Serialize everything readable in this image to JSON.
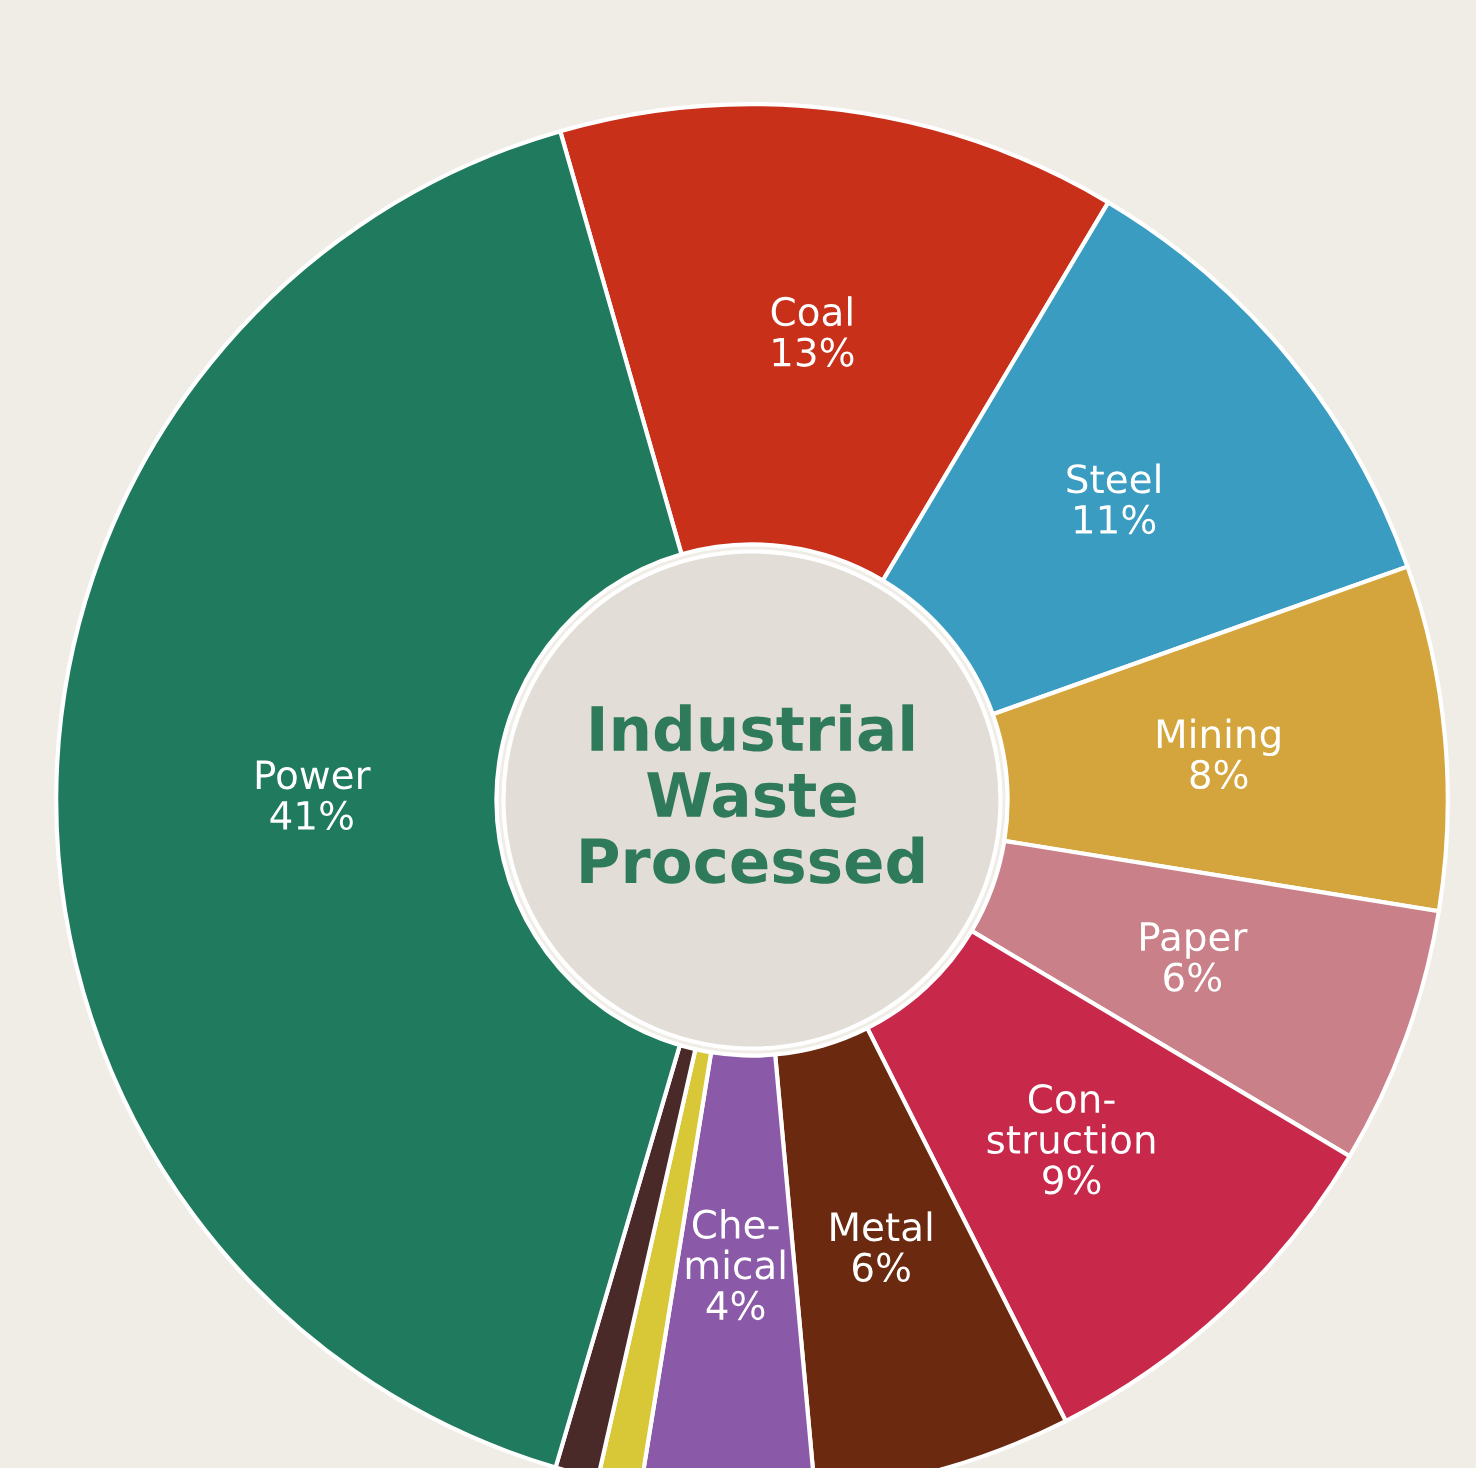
{
  "chart_data": {
    "type": "donut",
    "title": "Industrial\nWaste\nProcessed",
    "categories": [
      "Coal",
      "Steel",
      "Mining",
      "Paper",
      "Con-\nstruction",
      "Metal",
      "Che-\nmical",
      null,
      null,
      "Power"
    ],
    "values": [
      13,
      11,
      8,
      6,
      9,
      6,
      4,
      1,
      1,
      41
    ],
    "value_labels": [
      "13%",
      "11%",
      "8%",
      "6%",
      "9%",
      "6%",
      "4%",
      null,
      null,
      "41%"
    ],
    "colors": [
      "#c8301a",
      "#3a9cc0",
      "#d4a53c",
      "#c98088",
      "#c8284a",
      "#6b2a10",
      "#8a5aa8",
      "#d8c838",
      "#4a2a28",
      "#1f7a5e"
    ]
  }
}
